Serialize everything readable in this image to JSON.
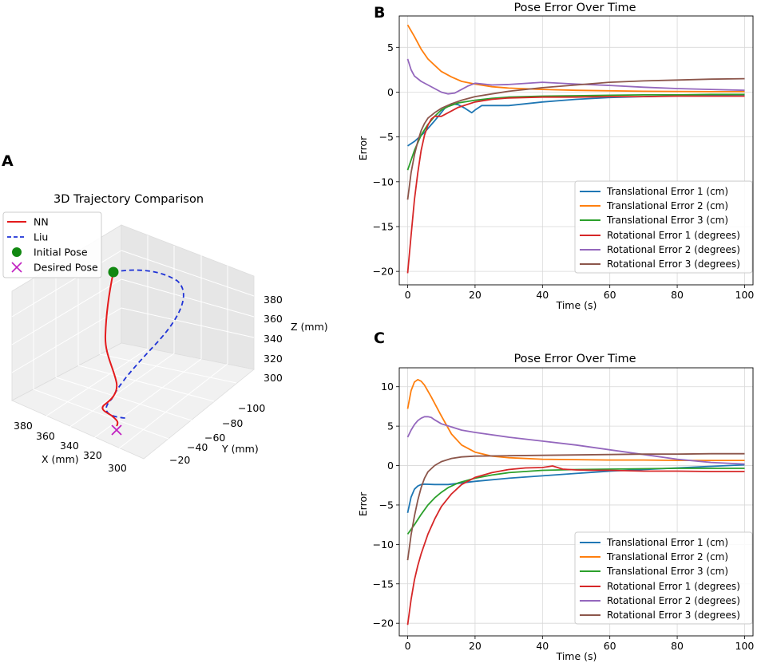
{
  "panel_labels": {
    "a": "A",
    "b": "B",
    "c": "C"
  },
  "colors": {
    "trans1": "#1f77b4",
    "trans2": "#ff7f0e",
    "trans3": "#2ca02c",
    "rot1": "#d62728",
    "rot2": "#9467bd",
    "rot3": "#8c564b",
    "nn": "#e41a1c",
    "liu": "#1f33d6",
    "initial": "#118811",
    "desired": "#c020c0",
    "grid": "#d8d8d8"
  },
  "chart_data": [
    {
      "id": "panel-a",
      "type": "line",
      "projection": "3d",
      "title": "3D Trajectory Comparison",
      "xlabel": "X (mm)",
      "ylabel": "Y (mm)",
      "zlabel": "Z (mm)",
      "xticks": [
        "380",
        "360",
        "340",
        "320",
        "300"
      ],
      "yticks": [
        "−100",
        "−80",
        "−60",
        "−40",
        "−20"
      ],
      "zticks": [
        "380",
        "360",
        "340",
        "320",
        "300"
      ],
      "legend": [
        "NN",
        "Liu",
        "Initial Pose",
        "Desired Pose"
      ],
      "legend_position": "top-left",
      "series": [
        {
          "name": "NN",
          "style": "solid"
        },
        {
          "name": "Liu",
          "style": "dashed"
        },
        {
          "name": "Initial Pose",
          "marker": "circle"
        },
        {
          "name": "Desired Pose",
          "marker": "x"
        }
      ]
    },
    {
      "id": "panel-b",
      "type": "line",
      "title": "Pose Error Over Time",
      "xlabel": "Time (s)",
      "ylabel": "Error",
      "xlim": [
        -2.5,
        102.5
      ],
      "ylim": [
        -21.5,
        8.5
      ],
      "xticks": [
        0,
        20,
        40,
        60,
        80,
        100
      ],
      "yticks": [
        -20,
        -15,
        -10,
        -5,
        0,
        5
      ],
      "grid": true,
      "legend_position": "lower-right",
      "series": [
        {
          "name": "Translational Error 1 (cm)",
          "color_key": "trans1",
          "x": [
            0,
            2,
            5,
            8,
            11,
            13,
            15,
            17,
            19,
            20,
            22,
            25,
            30,
            40,
            50,
            60,
            70,
            80,
            90,
            100
          ],
          "y": [
            -6,
            -5.5,
            -4.5,
            -3.2,
            -1.8,
            -1.3,
            -1.4,
            -1.8,
            -2.3,
            -2,
            -1.5,
            -1.5,
            -1.5,
            -1.1,
            -0.8,
            -0.6,
            -0.5,
            -0.4,
            -0.35,
            -0.3
          ]
        },
        {
          "name": "Translational Error 2 (cm)",
          "color_key": "trans2",
          "x": [
            0,
            2,
            4,
            6,
            8,
            10,
            13,
            16,
            20,
            25,
            30,
            40,
            50,
            60,
            70,
            80,
            90,
            100
          ],
          "y": [
            7.5,
            6.2,
            4.8,
            3.7,
            3,
            2.3,
            1.7,
            1.2,
            0.9,
            0.6,
            0.45,
            0.3,
            0.2,
            0.15,
            0.1,
            0.08,
            0.05,
            0.05
          ]
        },
        {
          "name": "Translational Error 3 (cm)",
          "color_key": "trans3",
          "x": [
            0,
            2,
            4,
            6,
            8,
            10,
            12,
            15,
            20,
            25,
            30,
            40,
            50,
            60,
            70,
            80,
            90,
            100
          ],
          "y": [
            -8.7,
            -6.5,
            -4.8,
            -3.6,
            -2.7,
            -2,
            -1.6,
            -1.2,
            -0.9,
            -0.7,
            -0.55,
            -0.45,
            -0.4,
            -0.35,
            -0.3,
            -0.3,
            -0.25,
            -0.25
          ]
        },
        {
          "name": "Rotational Error 1 (degrees)",
          "color_key": "rot1",
          "x": [
            0,
            1,
            2,
            3,
            4,
            5,
            6,
            7,
            8,
            10,
            12,
            15,
            20,
            25,
            30,
            40,
            50,
            60,
            70,
            80,
            90,
            100
          ],
          "y": [
            -20.2,
            -16,
            -12,
            -9,
            -6.5,
            -4.8,
            -3.7,
            -3,
            -2.7,
            -2.7,
            -2.3,
            -1.7,
            -1.1,
            -0.8,
            -0.65,
            -0.55,
            -0.55,
            -0.5,
            -0.5,
            -0.45,
            -0.45,
            -0.45
          ]
        },
        {
          "name": "Rotational Error 2 (degrees)",
          "color_key": "rot2",
          "x": [
            0,
            1,
            2,
            4,
            6,
            8,
            10,
            12,
            14,
            16,
            18,
            20,
            25,
            30,
            40,
            50,
            60,
            70,
            80,
            90,
            100
          ],
          "y": [
            3.7,
            2.5,
            1.8,
            1.2,
            0.8,
            0.4,
            0,
            -0.2,
            -0.1,
            0.3,
            0.7,
            1,
            0.8,
            0.85,
            1.1,
            0.9,
            0.75,
            0.55,
            0.4,
            0.3,
            0.2
          ]
        },
        {
          "name": "Rotational Error 3 (degrees)",
          "color_key": "rot3",
          "x": [
            0,
            1,
            2,
            3,
            4,
            5,
            6,
            8,
            10,
            13,
            16,
            20,
            25,
            30,
            40,
            50,
            60,
            70,
            80,
            90,
            100
          ],
          "y": [
            -12,
            -9,
            -7,
            -5.5,
            -4.3,
            -3.5,
            -2.9,
            -2.3,
            -1.8,
            -1.3,
            -0.9,
            -0.5,
            -0.2,
            0.1,
            0.5,
            0.8,
            1.1,
            1.25,
            1.35,
            1.45,
            1.5
          ]
        }
      ]
    },
    {
      "id": "panel-c",
      "type": "line",
      "title": "Pose Error Over Time",
      "xlabel": "Time (s)",
      "ylabel": "Error",
      "xlim": [
        -2.5,
        102.5
      ],
      "ylim": [
        -21.6,
        12.4
      ],
      "xticks": [
        0,
        20,
        40,
        60,
        80,
        100
      ],
      "yticks": [
        -20,
        -15,
        -10,
        -5,
        0,
        5,
        10
      ],
      "grid": true,
      "legend_position": "lower-right",
      "series": [
        {
          "name": "Translational Error 1 (cm)",
          "color_key": "trans1",
          "x": [
            0,
            1,
            2,
            3,
            4,
            5,
            8,
            12,
            20,
            30,
            40,
            50,
            60,
            70,
            80,
            90,
            100
          ],
          "y": [
            -6,
            -4,
            -3,
            -2.6,
            -2.4,
            -2.35,
            -2.4,
            -2.4,
            -2,
            -1.6,
            -1.3,
            -1,
            -0.7,
            -0.5,
            -0.3,
            -0.1,
            0.1
          ]
        },
        {
          "name": "Translational Error 2 (cm)",
          "color_key": "trans2",
          "x": [
            0,
            1,
            2,
            3,
            4,
            5,
            7,
            10,
            13,
            16,
            20,
            25,
            30,
            40,
            50,
            60,
            70,
            80,
            90,
            100
          ],
          "y": [
            7.2,
            9.5,
            10.6,
            10.9,
            10.7,
            10.2,
            8.7,
            6.3,
            4,
            2.6,
            1.7,
            1.2,
            1,
            0.8,
            0.75,
            0.7,
            0.7,
            0.65,
            0.65,
            0.65
          ]
        },
        {
          "name": "Translational Error 3 (cm)",
          "color_key": "trans3",
          "x": [
            0,
            2,
            4,
            6,
            8,
            10,
            12,
            15,
            20,
            25,
            30,
            40,
            50,
            60,
            70,
            80,
            90,
            100
          ],
          "y": [
            -8.7,
            -7.5,
            -6.2,
            -5,
            -4.1,
            -3.4,
            -2.8,
            -2.2,
            -1.6,
            -1.2,
            -0.9,
            -0.6,
            -0.5,
            -0.45,
            -0.4,
            -0.35,
            -0.35,
            -0.35
          ]
        },
        {
          "name": "Rotational Error 1 (degrees)",
          "color_key": "rot1",
          "x": [
            0,
            1,
            2,
            3,
            4,
            6,
            8,
            10,
            13,
            16,
            20,
            25,
            30,
            35,
            40,
            43,
            46,
            50,
            55,
            60,
            70,
            80,
            90,
            100
          ],
          "y": [
            -20.2,
            -17,
            -14.5,
            -12.7,
            -11.2,
            -8.7,
            -6.8,
            -5.2,
            -3.6,
            -2.4,
            -1.5,
            -0.9,
            -0.5,
            -0.3,
            -0.25,
            -0.05,
            -0.45,
            -0.55,
            -0.6,
            -0.6,
            -0.7,
            -0.7,
            -0.75,
            -0.75
          ]
        },
        {
          "name": "Rotational Error 2 (degrees)",
          "color_key": "rot2",
          "x": [
            0,
            1,
            2,
            3,
            4,
            5,
            6,
            7,
            8,
            10,
            13,
            16,
            20,
            30,
            40,
            50,
            60,
            70,
            80,
            90,
            100
          ],
          "y": [
            3.6,
            4.5,
            5.2,
            5.7,
            6,
            6.2,
            6.2,
            6.1,
            5.8,
            5.3,
            4.9,
            4.5,
            4.2,
            3.6,
            3.1,
            2.6,
            2,
            1.4,
            0.8,
            0.4,
            0.2
          ]
        },
        {
          "name": "Rotational Error 3 (degrees)",
          "color_key": "rot3",
          "x": [
            0,
            1,
            2,
            3,
            4,
            5,
            6,
            8,
            10,
            13,
            16,
            20,
            30,
            40,
            50,
            60,
            70,
            80,
            90,
            100
          ],
          "y": [
            -12,
            -8.8,
            -6.4,
            -4.4,
            -2.8,
            -1.6,
            -0.8,
            0,
            0.5,
            0.9,
            1.1,
            1.2,
            1.25,
            1.3,
            1.35,
            1.4,
            1.45,
            1.45,
            1.5,
            1.5
          ]
        }
      ]
    }
  ]
}
